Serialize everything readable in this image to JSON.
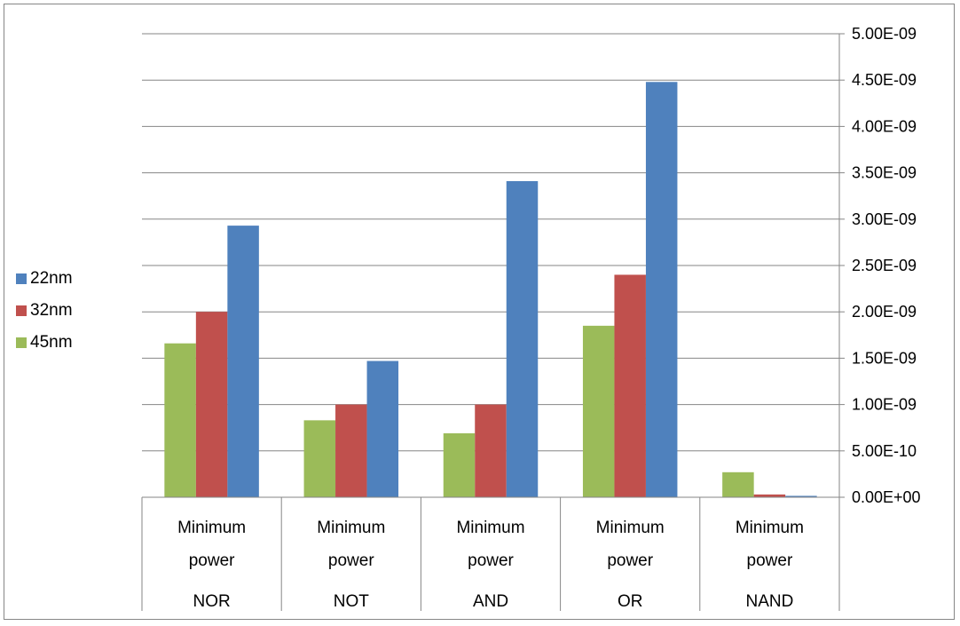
{
  "chart_data": {
    "type": "bar",
    "categories": [
      {
        "line1": "Minimum",
        "line2": "power",
        "group": "NOR"
      },
      {
        "line1": "Minimum",
        "line2": "power",
        "group": "NOT"
      },
      {
        "line1": "Minimum",
        "line2": "power",
        "group": "AND"
      },
      {
        "line1": "Minimum",
        "line2": "power",
        "group": "OR"
      },
      {
        "line1": "Minimum",
        "line2": "power",
        "group": "NAND"
      }
    ],
    "series": [
      {
        "name": "45nm",
        "color": "#9bbb59",
        "values": [
          1.66e-09,
          8.3e-10,
          6.9e-10,
          1.85e-09,
          2.7e-10
        ]
      },
      {
        "name": "32nm",
        "color": "#c0504d",
        "values": [
          2e-09,
          1e-09,
          1e-09,
          2.4e-09,
          3e-11
        ]
      },
      {
        "name": "22nm",
        "color": "#4f81bd",
        "values": [
          2.93e-09,
          1.47e-09,
          3.41e-09,
          4.48e-09,
          1.5e-11
        ]
      }
    ],
    "legend_order": [
      "22nm",
      "32nm",
      "45nm"
    ],
    "y_ticks": [
      "0.00E+00",
      "5.00E-10",
      "1.00E-09",
      "1.50E-09",
      "2.00E-09",
      "2.50E-09",
      "3.00E-09",
      "3.50E-09",
      "4.00E-09",
      "4.50E-09",
      "5.00E-09"
    ],
    "ylim": [
      0,
      5e-09
    ],
    "y_axis_position": "right",
    "legend_position": "left",
    "grid": true,
    "title": "",
    "xlabel": "",
    "ylabel": ""
  },
  "legend": [
    {
      "label": "22nm",
      "color": "#4f81bd"
    },
    {
      "label": "32nm",
      "color": "#c0504d"
    },
    {
      "label": "45nm",
      "color": "#9bbb59"
    }
  ]
}
